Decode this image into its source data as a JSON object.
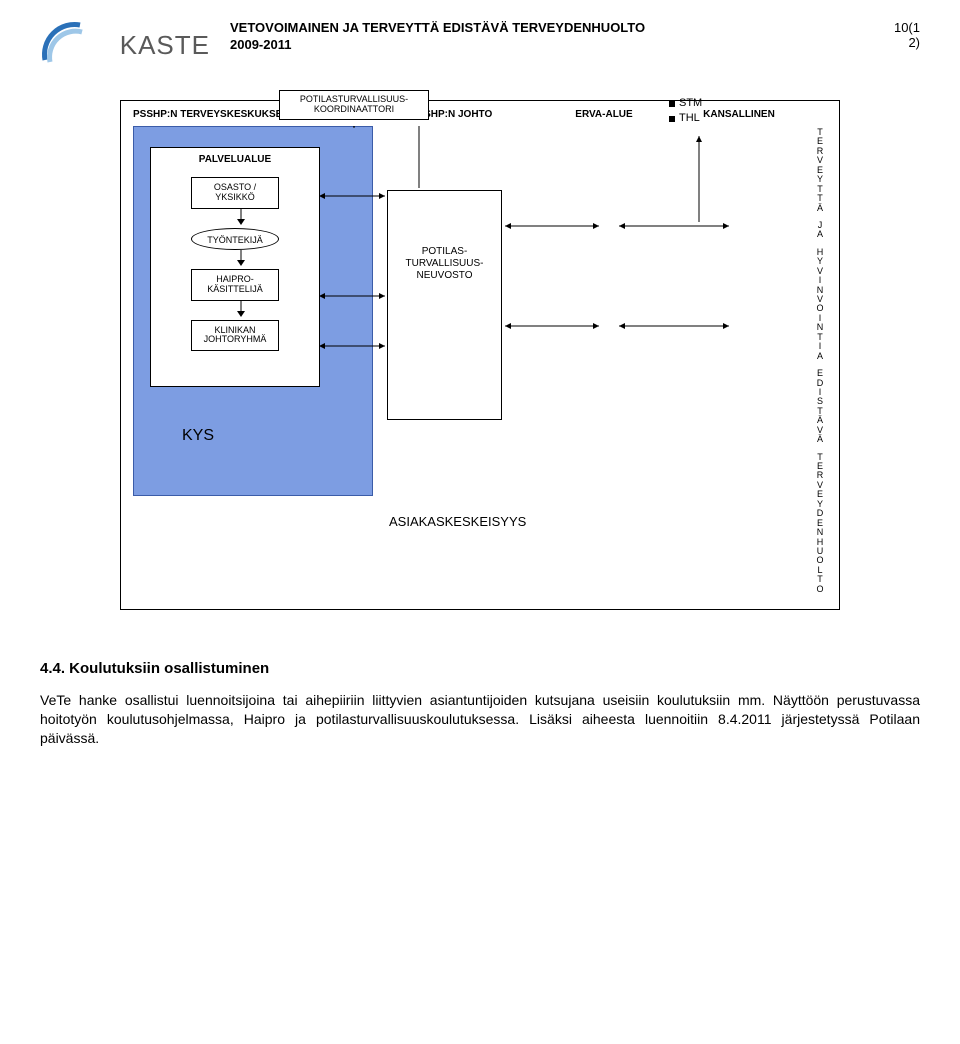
{
  "header": {
    "logo": "KASTE",
    "title_line1": "VETOVOIMAINEN JA TERVEYTTÄ EDISTÄVÄ TERVEYDENHUOLTO",
    "title_line2": "2009-2011",
    "page_num_top": "10(1",
    "page_num_bot": "2)"
  },
  "diagram": {
    "columns": {
      "c1": "PSSHP:N TERVEYSKESKUKSET",
      "c2": "PSSHP:N JOHTO",
      "c3": "ERVA-ALUE",
      "c4": "KANSALLINEN"
    },
    "coord_box": "POTILASTURVALLISUUS-KOORDINAATTORI",
    "service_area": "PALVELUALUE",
    "unit": "OSASTO /\nYKSIKKÖ",
    "worker": "TYÖNTEKIJÄ",
    "handler": "HAIPRO-KÄSITTELIJÄ",
    "mgmt": "KLINIKAN JOHTORYHMÄ",
    "kys": "KYS",
    "council": "POTILAS-TURVALLISUUS-NEUVOSTO",
    "nat1": "STM",
    "nat2": "THL",
    "vertical_top": "TERVEYTTÄ",
    "vertical_mid1": "JA",
    "vertical_mid2": "HYVINVOINTIA",
    "vertical_mid3": "EDISTÄVÄ",
    "vertical_bot": "TERVEYDENHUOLTO",
    "bottom": "ASIAKASKESKEISYYS",
    "colors": {
      "blue_fill": "#7d9de2",
      "blue_border": "#3b5ca8",
      "arrow": "#000000"
    }
  },
  "section": {
    "heading": "4.4. Koulutuksiin osallistuminen",
    "para": "VeTe hanke osallistui luennoitsijoina tai aihepiiriin liittyvien asiantuntijoiden kutsujana useisiin koulutuksiin mm. Näyttöön perustuvassa hoitotyön koulutusohjelmassa, Haipro ja potilasturvallisuuskoulutuksessa. Lisäksi aiheesta luennoitiin 8.4.2011 järjestetyssä Potilaan päivässä."
  }
}
